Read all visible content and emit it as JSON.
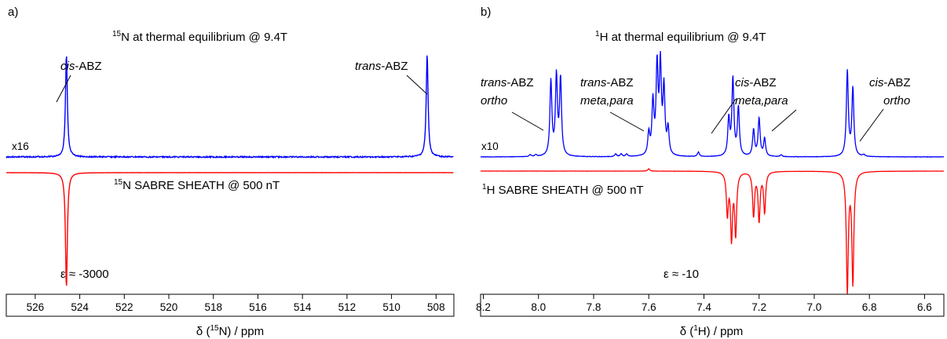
{
  "colors": {
    "thermal": "#0000ff",
    "sabre": "#ff0000",
    "axis": "#000000"
  },
  "chart_data": [
    {
      "type": "line",
      "panel_label": "a)",
      "x_scale": "reversed",
      "xlim": [
        527.3,
        507.2
      ],
      "xticks": [
        526,
        524,
        522,
        520,
        518,
        516,
        514,
        512,
        510,
        508
      ],
      "xlabel": {
        "pre": "δ (",
        "sup": "15",
        "post": "N) / ppm"
      },
      "series": [
        {
          "name": {
            "sup": "15",
            "text": "N at thermal equilibrium @ 9.4T"
          },
          "color": "thermal",
          "scale_label": "x16",
          "baseline": 0,
          "peaks": [
            {
              "x": 524.6,
              "y": 1.0
            },
            {
              "x": 508.4,
              "y": 1.0
            }
          ]
        },
        {
          "name": {
            "sup": "15",
            "text": "N SABRE SHEATH @ 500 nT"
          },
          "color": "sabre",
          "baseline": 0,
          "peaks": [
            {
              "x": 524.6,
              "y": -1.0
            }
          ]
        }
      ],
      "annotations": [
        {
          "italic": "cis",
          "text": "-ABZ"
        },
        {
          "italic": "trans",
          "text": "-ABZ"
        },
        {
          "text": "ε ≈ -3000"
        }
      ]
    },
    {
      "type": "line",
      "panel_label": "b)",
      "x_scale": "reversed",
      "xlim": [
        8.21,
        6.53
      ],
      "xticks": [
        "8.2",
        "8.0",
        "7.8",
        "7.6",
        "7.4",
        "7.2",
        "7.0",
        "6.8",
        "6.6"
      ],
      "xlabel": {
        "pre": "δ (",
        "sup": "1",
        "post": "H) / ppm"
      },
      "series": [
        {
          "name": {
            "sup": "1",
            "text": "H at thermal equilibrium @ 9.4T"
          },
          "color": "thermal",
          "scale_label": "x10",
          "baseline": 0,
          "peaks": [
            {
              "x": 8.03,
              "y": 0.02
            },
            {
              "x": 8.01,
              "y": 0.02
            },
            {
              "x": 7.955,
              "y": 0.85
            },
            {
              "x": 7.935,
              "y": 0.9
            },
            {
              "x": 7.92,
              "y": 0.87
            },
            {
              "x": 7.72,
              "y": 0.03
            },
            {
              "x": 7.7,
              "y": 0.03
            },
            {
              "x": 7.68,
              "y": 0.03
            },
            {
              "x": 7.6,
              "y": 0.25
            },
            {
              "x": 7.585,
              "y": 0.6
            },
            {
              "x": 7.57,
              "y": 1.0
            },
            {
              "x": 7.558,
              "y": 1.0
            },
            {
              "x": 7.545,
              "y": 0.75
            },
            {
              "x": 7.53,
              "y": 0.3
            },
            {
              "x": 7.42,
              "y": 0.05
            },
            {
              "x": 7.31,
              "y": 0.42
            },
            {
              "x": 7.295,
              "y": 0.88
            },
            {
              "x": 7.275,
              "y": 0.55
            },
            {
              "x": 7.22,
              "y": 0.3
            },
            {
              "x": 7.2,
              "y": 0.43
            },
            {
              "x": 7.18,
              "y": 0.2
            },
            {
              "x": 7.12,
              "y": 0.02
            },
            {
              "x": 6.88,
              "y": 0.97
            },
            {
              "x": 6.86,
              "y": 0.77
            },
            {
              "x": 6.82,
              "y": 0.02
            }
          ]
        },
        {
          "name": {
            "sup": "1",
            "text": "H SABRE SHEATH @ 500 nT"
          },
          "color": "sabre",
          "baseline": 0,
          "peaks": [
            {
              "x": 7.6,
              "y": 0.02
            },
            {
              "x": 7.315,
              "y": -0.35
            },
            {
              "x": 7.3,
              "y": -0.55
            },
            {
              "x": 7.285,
              "y": -0.52
            },
            {
              "x": 7.22,
              "y": -0.37
            },
            {
              "x": 7.2,
              "y": -0.41
            },
            {
              "x": 7.18,
              "y": -0.34
            },
            {
              "x": 6.88,
              "y": -1.0
            },
            {
              "x": 6.86,
              "y": -0.93
            }
          ]
        }
      ],
      "annotations": [
        {
          "italic": "trans",
          "text": "-ABZ",
          "line2_italic": "ortho"
        },
        {
          "italic": "trans",
          "text": "-ABZ",
          "line2_italic": "meta,para"
        },
        {
          "italic": "cis",
          "text": "-ABZ",
          "line2_italic": "meta,para"
        },
        {
          "italic": "cis",
          "text": "-ABZ",
          "line2_italic": "ortho"
        },
        {
          "text": "ε ≈ -10"
        }
      ]
    }
  ]
}
